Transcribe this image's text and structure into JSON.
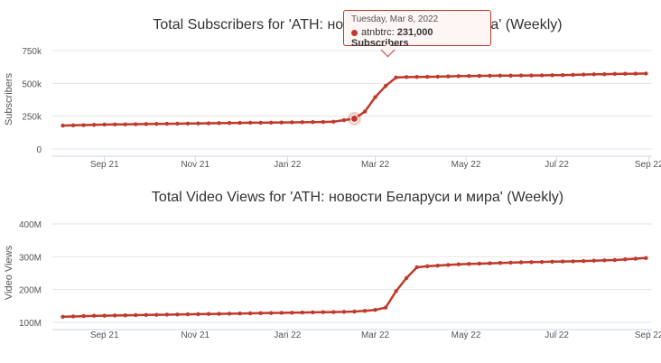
{
  "chart_data": [
    {
      "type": "line",
      "title": "Total Subscribers for 'ATH: новости Беларуси и мира' (Weekly)",
      "ylabel": "Subscribers",
      "xlabel": "",
      "ylim": [
        0,
        750000
      ],
      "yticks": [
        0,
        250000,
        500000,
        750000
      ],
      "ytick_labels": [
        "0",
        "250k",
        "500k",
        "750k"
      ],
      "xticks": [
        "2021-09-21",
        "2021-11-21",
        "2022-01-22",
        "2022-03-22",
        "2022-05-22",
        "2022-07-22",
        "2022-09-22"
      ],
      "xtick_labels": [
        "Sep 21",
        "Nov 21",
        "Jan 22",
        "Mar 22",
        "May 22",
        "Jul 22",
        "Sep 22"
      ],
      "color": "#c0392b",
      "series": [
        {
          "x": [
            "2021-08-24",
            "2021-08-31",
            "2021-09-07",
            "2021-09-14",
            "2021-09-21",
            "2021-09-28",
            "2021-10-05",
            "2021-10-12",
            "2021-10-19",
            "2021-10-26",
            "2021-11-02",
            "2021-11-09",
            "2021-11-16",
            "2021-11-23",
            "2021-11-30",
            "2021-12-07",
            "2021-12-14",
            "2021-12-21",
            "2021-12-28",
            "2022-01-04",
            "2022-01-11",
            "2022-01-18",
            "2022-01-25",
            "2022-02-01",
            "2022-02-08",
            "2022-02-15",
            "2022-02-22",
            "2022-03-01",
            "2022-03-08",
            "2022-03-15",
            "2022-03-22",
            "2022-03-29",
            "2022-04-05",
            "2022-04-12",
            "2022-04-19",
            "2022-04-26",
            "2022-05-03",
            "2022-05-10",
            "2022-05-17",
            "2022-05-24",
            "2022-05-31",
            "2022-06-07",
            "2022-06-14",
            "2022-06-21",
            "2022-06-28",
            "2022-07-05",
            "2022-07-12",
            "2022-07-19",
            "2022-07-26",
            "2022-08-02",
            "2022-08-09",
            "2022-08-16",
            "2022-08-23",
            "2022-08-30",
            "2022-09-06",
            "2022-09-13",
            "2022-09-20"
          ],
          "values": [
            178000,
            180000,
            182000,
            184000,
            186000,
            187000,
            188000,
            189000,
            190000,
            191000,
            192000,
            193000,
            194000,
            195000,
            196000,
            197000,
            198000,
            199000,
            200000,
            200000,
            201000,
            202000,
            203000,
            204000,
            205000,
            206000,
            208000,
            220000,
            231000,
            285000,
            395000,
            480000,
            545000,
            548000,
            549000,
            550000,
            551000,
            553000,
            555000,
            556000,
            557000,
            558000,
            559000,
            559000,
            560000,
            560000,
            561000,
            562000,
            563000,
            565000,
            567000,
            569000,
            570000,
            572000,
            573000,
            574000,
            575000
          ]
        }
      ],
      "highlight": {
        "x": "2022-03-08",
        "value": 231000
      }
    },
    {
      "type": "line",
      "title": "Total Video Views for 'ATH: новости Беларуси и мира' (Weekly)",
      "ylabel": "Video Views",
      "xlabel": "",
      "ylim": [
        100000000,
        400000000
      ],
      "yticks": [
        100000000,
        200000000,
        300000000,
        400000000
      ],
      "ytick_labels": [
        "100M",
        "200M",
        "300M",
        "400M"
      ],
      "xticks": [
        "2021-09-21",
        "2021-11-21",
        "2022-01-22",
        "2022-03-22",
        "2022-05-22",
        "2022-07-22",
        "2022-09-22"
      ],
      "xtick_labels": [
        "Sep 21",
        "Nov 21",
        "Jan 22",
        "Mar 22",
        "May 22",
        "Jul 22",
        "Sep 22"
      ],
      "color": "#c0392b",
      "series": [
        {
          "x": [
            "2021-08-24",
            "2021-08-31",
            "2021-09-07",
            "2021-09-14",
            "2021-09-21",
            "2021-09-28",
            "2021-10-05",
            "2021-10-12",
            "2021-10-19",
            "2021-10-26",
            "2021-11-02",
            "2021-11-09",
            "2021-11-16",
            "2021-11-23",
            "2021-11-30",
            "2021-12-07",
            "2021-12-14",
            "2021-12-21",
            "2021-12-28",
            "2022-01-04",
            "2022-01-11",
            "2022-01-18",
            "2022-01-25",
            "2022-02-01",
            "2022-02-08",
            "2022-02-15",
            "2022-02-22",
            "2022-03-01",
            "2022-03-08",
            "2022-03-15",
            "2022-03-22",
            "2022-03-29",
            "2022-04-05",
            "2022-04-12",
            "2022-04-19",
            "2022-04-26",
            "2022-05-03",
            "2022-05-10",
            "2022-05-17",
            "2022-05-24",
            "2022-05-31",
            "2022-06-07",
            "2022-06-14",
            "2022-06-21",
            "2022-06-28",
            "2022-07-05",
            "2022-07-12",
            "2022-07-19",
            "2022-07-26",
            "2022-08-02",
            "2022-08-09",
            "2022-08-16",
            "2022-08-23",
            "2022-08-30",
            "2022-09-06",
            "2022-09-13",
            "2022-09-20"
          ],
          "values": [
            117000000,
            118000000,
            119000000,
            120000000,
            120500000,
            121000000,
            121500000,
            122000000,
            122500000,
            123000000,
            123500000,
            124000000,
            124500000,
            125000000,
            125500000,
            126000000,
            126500000,
            127000000,
            127500000,
            128000000,
            128500000,
            129000000,
            129500000,
            130000000,
            130500000,
            131000000,
            131500000,
            132000000,
            133000000,
            135000000,
            138000000,
            145000000,
            195000000,
            235000000,
            268000000,
            271000000,
            273000000,
            275000000,
            277000000,
            278000000,
            279000000,
            280000000,
            281000000,
            282000000,
            283000000,
            283500000,
            284000000,
            285000000,
            285500000,
            286000000,
            287000000,
            288000000,
            289000000,
            290000000,
            292000000,
            294000000,
            296000000
          ]
        }
      ]
    }
  ],
  "tooltip": {
    "date": "Tuesday, Mar 8, 2022",
    "series": "atnbtrc:",
    "value": "231,000 Subscribers"
  }
}
